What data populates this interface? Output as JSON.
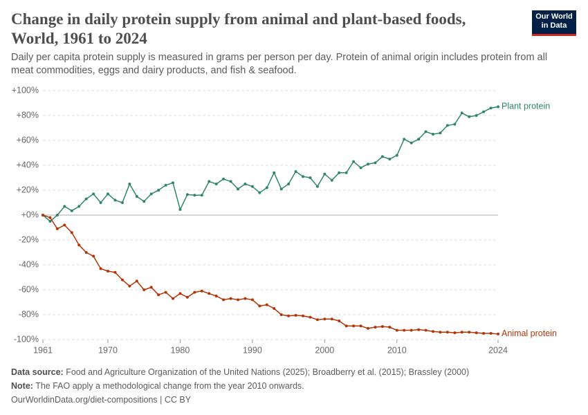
{
  "header": {
    "logo": "Our World in Data"
  },
  "footer": {
    "source_label": "Data source:",
    "source": "Food and Agriculture Organization of the United Nations (2025); Broadberry et al. (2015); Brassley (2000)",
    "note_label": "Note:",
    "note": "The FAO apply a methodological change from the year 2010 onwards.",
    "url": "OurWorldinData.org/diet-compositions | CC BY"
  },
  "chart_data": {
    "type": "line",
    "title": "Change in daily protein supply from animal and plant-based foods, World, 1961 to 2024",
    "subtitle": "Daily per capita protein supply is measured in grams per person per day. Protein of animal origin includes protein from all meat commodities, eggs and dairy products, and fish & seafood.",
    "x": [
      1961,
      1962,
      1963,
      1964,
      1965,
      1966,
      1967,
      1968,
      1969,
      1970,
      1971,
      1972,
      1973,
      1974,
      1975,
      1976,
      1977,
      1978,
      1979,
      1980,
      1981,
      1982,
      1983,
      1984,
      1985,
      1986,
      1987,
      1988,
      1989,
      1990,
      1991,
      1992,
      1993,
      1994,
      1995,
      1996,
      1997,
      1998,
      1999,
      2000,
      2001,
      2002,
      2003,
      2004,
      2005,
      2006,
      2007,
      2008,
      2009,
      2010,
      2011,
      2012,
      2013,
      2014,
      2015,
      2016,
      2017,
      2018,
      2019,
      2020,
      2021,
      2022,
      2023,
      2024
    ],
    "series": [
      {
        "name": "Plant protein",
        "color": "#2f8768",
        "values": [
          0,
          -5,
          0,
          7,
          3.5,
          7,
          13,
          17,
          10,
          17,
          12,
          10,
          25,
          15,
          11,
          17,
          20,
          24,
          26,
          4.5,
          16.5,
          16,
          16,
          27,
          25,
          29,
          27,
          21,
          25,
          23,
          18,
          22,
          34,
          21,
          25,
          35,
          31,
          30,
          23,
          33,
          28,
          34,
          34,
          43,
          38,
          41,
          42,
          47,
          45,
          48,
          61,
          58,
          61,
          67,
          65,
          66,
          72,
          73,
          82,
          79,
          80,
          83,
          86,
          87
        ]
      },
      {
        "name": "Animal protein",
        "color": "#b13507",
        "values": [
          0,
          -2,
          -11,
          -8,
          -14,
          -24,
          -30,
          -33,
          -43,
          -45,
          -46,
          -52,
          -57,
          -53,
          -60,
          -58,
          -64,
          -62,
          -67,
          -63,
          -66,
          -62,
          -61,
          -63,
          -65,
          -68,
          -67,
          -68,
          -67,
          -68,
          -73,
          -72,
          -75,
          -80,
          -81,
          -80.5,
          -81,
          -82,
          -84,
          -83.5,
          -83.5,
          -85,
          -89,
          -89,
          -89,
          -91,
          -90,
          -89.5,
          -90,
          -92.5,
          -92.5,
          -92.5,
          -92,
          -92.5,
          -93.5,
          -94,
          -94,
          -94.5,
          -94,
          -94,
          -94.5,
          -95,
          -95,
          -95.5
        ]
      }
    ],
    "xlim": [
      1961,
      2024
    ],
    "xticks": [
      1961,
      1970,
      1980,
      1990,
      2000,
      2010,
      2024
    ],
    "ylim": [
      -100,
      100
    ],
    "yticks": [
      {
        "value": -100,
        "label": "-100%"
      },
      {
        "value": -80,
        "label": "-80%"
      },
      {
        "value": -60,
        "label": "-60%"
      },
      {
        "value": -40,
        "label": "-40%"
      },
      {
        "value": -20,
        "label": "-20%"
      },
      {
        "value": 0,
        "label": "+0%"
      },
      {
        "value": 20,
        "label": "+20%"
      },
      {
        "value": 40,
        "label": "+40%"
      },
      {
        "value": 60,
        "label": "+60%"
      },
      {
        "value": 80,
        "label": "+80%"
      },
      {
        "value": 100,
        "label": "+100%"
      }
    ],
    "grid": true
  }
}
